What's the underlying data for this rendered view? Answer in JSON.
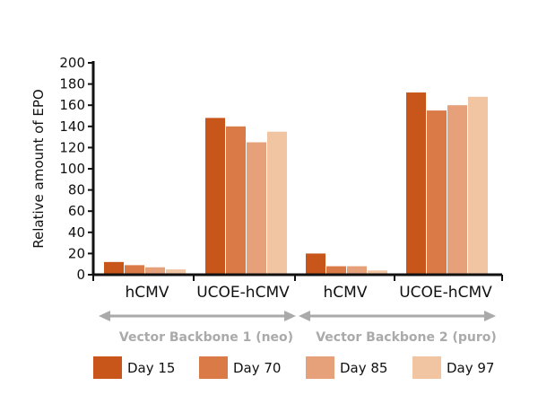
{
  "chart_data": {
    "type": "bar",
    "ylabel": "Relative amount of EPO",
    "ylim": [
      0,
      200
    ],
    "yticks": [
      0,
      20,
      40,
      60,
      80,
      100,
      120,
      140,
      160,
      180,
      200
    ],
    "categories": [
      "hCMV",
      "UCOE-hCMV",
      "hCMV",
      "UCOE-hCMV"
    ],
    "groups": [
      {
        "label": "Vector Backbone 1 (neo)",
        "categories": [
          0,
          1
        ]
      },
      {
        "label": "Vector Backbone 2 (puro)",
        "categories": [
          2,
          3
        ]
      }
    ],
    "series": [
      {
        "name": "Day 15",
        "color": "#C8561A",
        "values": [
          12,
          148,
          20,
          172
        ]
      },
      {
        "name": "Day 70",
        "color": "#DA7A47",
        "values": [
          9,
          140,
          8,
          155
        ]
      },
      {
        "name": "Day 85",
        "color": "#E6A07A",
        "values": [
          7,
          125,
          8,
          160
        ]
      },
      {
        "name": "Day 97",
        "color": "#F1C4A2",
        "values": [
          5,
          135,
          4,
          168
        ]
      }
    ],
    "legend_position": "bottom",
    "grid": false,
    "arrow_color": "#aaaaaa"
  }
}
